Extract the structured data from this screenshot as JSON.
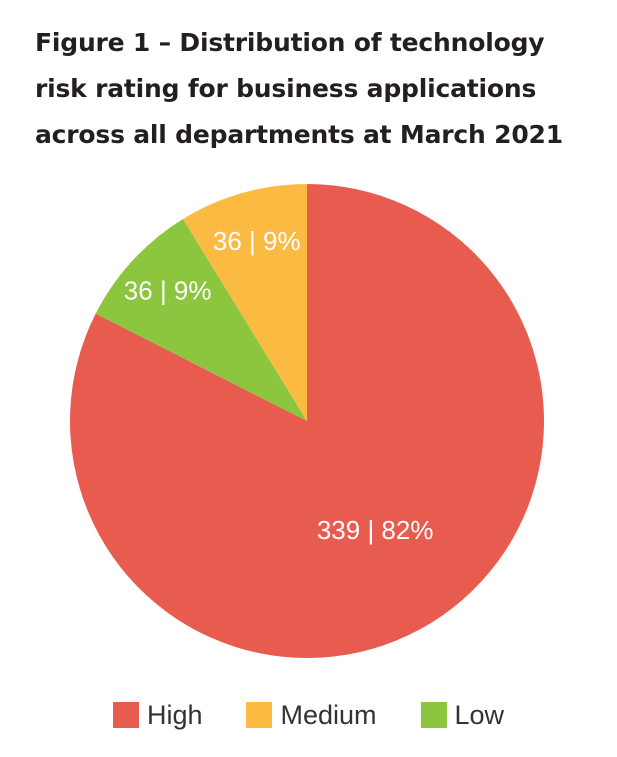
{
  "figure": {
    "title_lines": [
      "Figure 1 – Distribution of technology",
      "risk rating for business applications",
      "across all departments at March 2021"
    ]
  },
  "chart_data": {
    "type": "pie",
    "title": "Figure 1 – Distribution of technology risk rating for business applications across all departments at March 2021",
    "legend_position": "bottom",
    "slices": [
      {
        "name": "High",
        "value": 339,
        "percent": 82,
        "label": "339 | 82%",
        "color": "#e85c50"
      },
      {
        "name": "Medium",
        "value": 36,
        "percent": 9,
        "label": "36 | 9%",
        "color": "#fbbb42"
      },
      {
        "name": "Low",
        "value": 36,
        "percent": 9,
        "label": "36 | 9%",
        "color": "#8cc63f"
      }
    ],
    "legend_order": [
      "High",
      "Medium",
      "Low"
    ]
  }
}
